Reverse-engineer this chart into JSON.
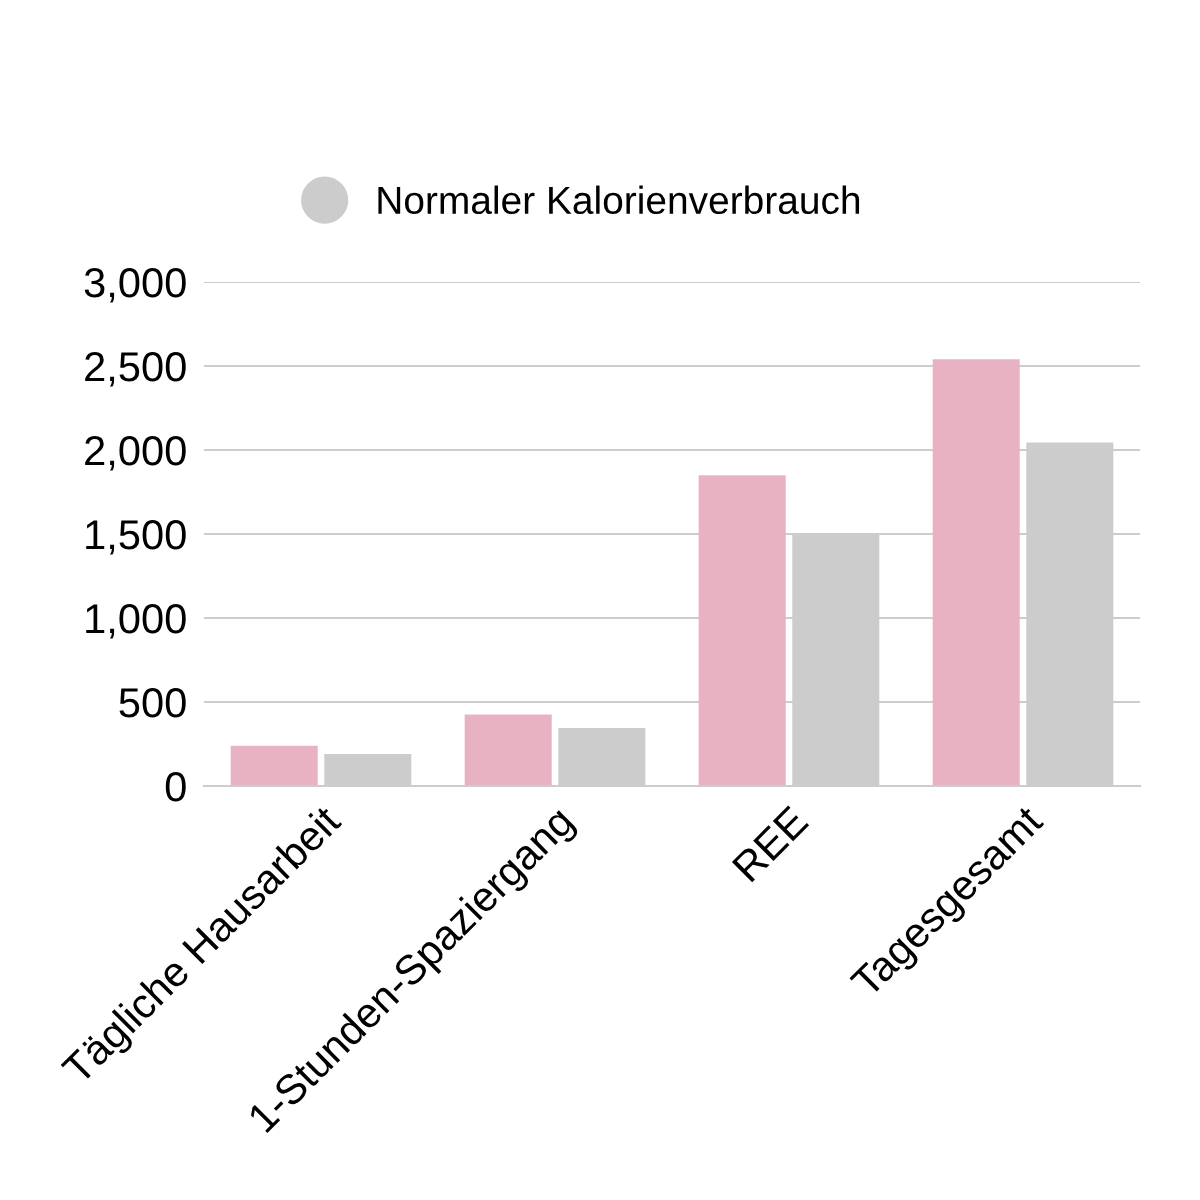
{
  "chart_data": {
    "type": "bar",
    "categories": [
      "Tägliche Hausarbeit",
      "1-Stunden-Spaziergang",
      "REE",
      "Tagesgesamt"
    ],
    "series": [
      {
        "color": "#e8b2c2",
        "values": [
          240,
          425,
          1850,
          2540
        ]
      },
      {
        "name": "Normaler Kalorienverbrauch",
        "color": "#cccccc",
        "values": [
          190,
          345,
          1500,
          2045
        ]
      }
    ],
    "ylim": [
      0,
      3000
    ],
    "yticks": [
      0,
      {
        "value": 500,
        "label": "500"
      },
      {
        "value": 1000,
        "label": "1,000"
      },
      {
        "value": 1500,
        "label": "1,500"
      },
      {
        "value": 2000,
        "label": "2,000"
      },
      {
        "value": 2500,
        "label": "2,500"
      },
      {
        "value": 3000,
        "label": "3,000"
      }
    ],
    "grid": "y",
    "legend": "top"
  }
}
